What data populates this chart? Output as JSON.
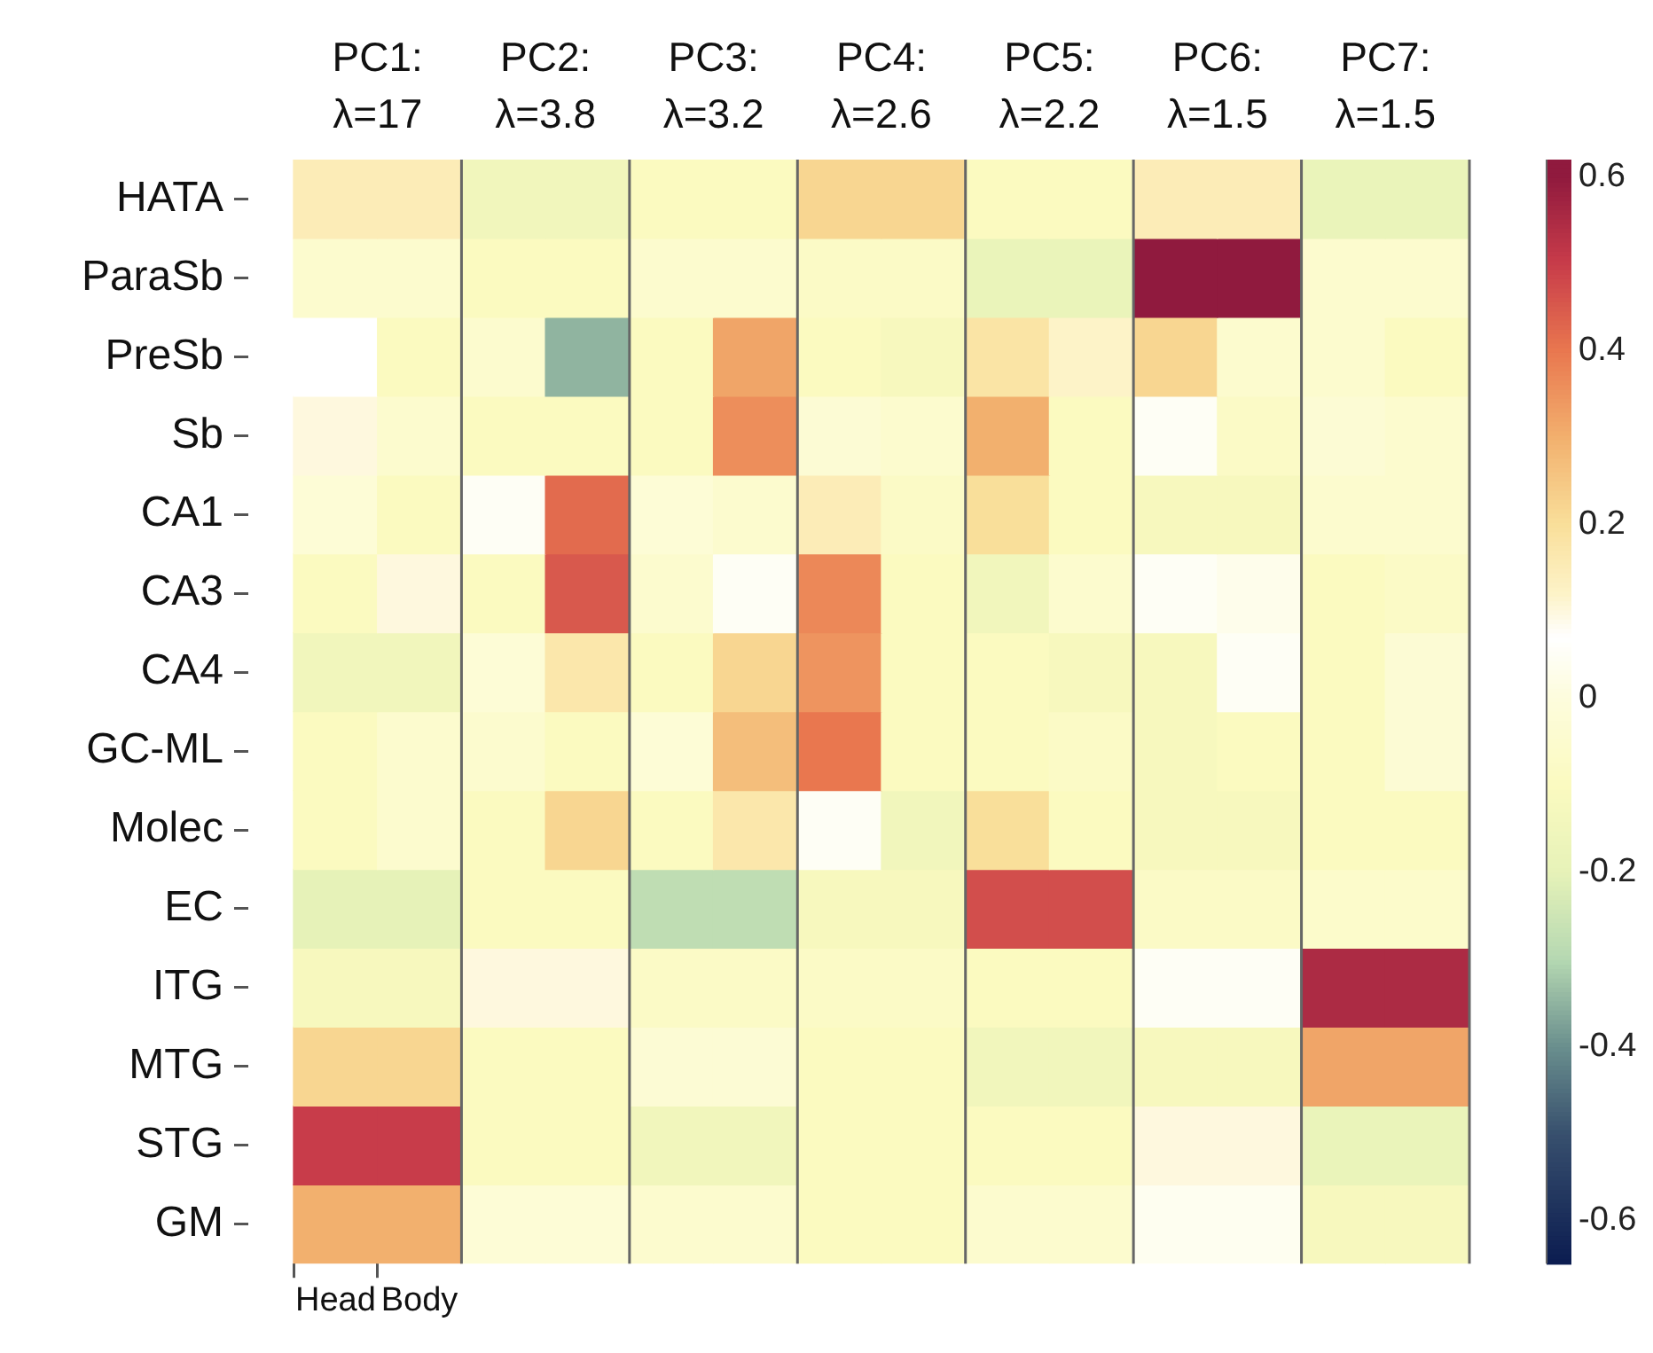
{
  "chart_data": {
    "type": "heatmap",
    "categories": [
      "Head",
      "Body",
      null,
      null,
      null,
      null,
      null,
      null,
      null,
      null,
      null,
      null,
      null,
      null
    ],
    "y_categories": [
      "HATA",
      "ParaSb",
      "PreSb",
      "Sb",
      "CA1",
      "CA3",
      "CA4",
      "GC-ML",
      "Molec",
      "EC",
      "ITG",
      "MTG",
      "STG",
      "GM"
    ],
    "annotations": [
      "PC1: λ=17",
      "PC2: λ=3.8",
      "PC3: λ=3.2",
      "PC4: λ=2.6",
      "PC5: λ=2.2",
      "PC6: λ=1.5",
      "PC7: λ=1.5"
    ],
    "clim": [
      -0.65,
      0.62
    ],
    "cticks": [
      -0.6,
      -0.4,
      -0.2,
      0,
      0.2,
      0.4,
      0.6
    ],
    "cells": [
      [
        0.15,
        0.15,
        -0.15,
        -0.15,
        -0.1,
        -0.1,
        0.22,
        0.22,
        -0.1,
        -0.1,
        0.15,
        0.15,
        -0.18,
        -0.18
      ],
      [
        -0.05,
        -0.05,
        -0.1,
        -0.1,
        -0.05,
        -0.05,
        -0.08,
        -0.08,
        -0.18,
        -0.18,
        0.6,
        0.6,
        -0.05,
        -0.05
      ],
      [
        0.07,
        -0.1,
        -0.05,
        -0.35,
        -0.1,
        0.32,
        -0.1,
        -0.12,
        0.18,
        0.12,
        0.22,
        -0.05,
        -0.05,
        -0.1
      ],
      [
        0.1,
        -0.05,
        -0.1,
        -0.1,
        -0.1,
        0.36,
        -0.03,
        -0.05,
        0.3,
        -0.1,
        0.05,
        -0.08,
        -0.03,
        -0.05
      ],
      [
        -0.02,
        -0.1,
        0.05,
        0.42,
        -0.02,
        -0.05,
        0.15,
        -0.08,
        0.2,
        -0.1,
        -0.12,
        -0.12,
        -0.05,
        -0.05
      ],
      [
        -0.1,
        0.1,
        -0.1,
        0.45,
        -0.05,
        0.05,
        0.37,
        -0.1,
        -0.15,
        -0.05,
        0.05,
        0.03,
        -0.1,
        -0.08
      ],
      [
        -0.15,
        -0.15,
        -0.02,
        0.17,
        -0.1,
        0.22,
        0.35,
        -0.1,
        -0.1,
        -0.12,
        -0.12,
        0.05,
        -0.1,
        -0.03
      ],
      [
        -0.1,
        -0.05,
        -0.05,
        -0.1,
        -0.02,
        0.27,
        0.4,
        -0.1,
        -0.1,
        -0.08,
        -0.12,
        -0.1,
        -0.1,
        -0.03
      ],
      [
        -0.1,
        -0.05,
        -0.1,
        0.22,
        -0.1,
        0.17,
        0.05,
        -0.15,
        0.2,
        -0.1,
        -0.12,
        -0.12,
        -0.1,
        -0.1
      ],
      [
        -0.2,
        -0.2,
        -0.1,
        -0.1,
        -0.28,
        -0.28,
        -0.12,
        -0.12,
        0.47,
        0.47,
        -0.08,
        -0.08,
        -0.06,
        -0.06
      ],
      [
        -0.12,
        -0.12,
        0.1,
        0.1,
        -0.08,
        -0.08,
        -0.08,
        -0.08,
        -0.1,
        -0.1,
        0.05,
        0.05,
        0.55,
        0.55
      ],
      [
        0.22,
        0.22,
        -0.1,
        -0.1,
        -0.03,
        -0.03,
        -0.1,
        -0.1,
        -0.15,
        -0.15,
        -0.12,
        -0.12,
        0.32,
        0.32
      ],
      [
        0.5,
        0.5,
        -0.1,
        -0.1,
        -0.15,
        -0.15,
        -0.1,
        -0.1,
        -0.1,
        -0.1,
        0.1,
        0.1,
        -0.18,
        -0.18
      ],
      [
        0.3,
        0.3,
        -0.02,
        -0.02,
        -0.05,
        -0.05,
        -0.1,
        -0.1,
        -0.05,
        -0.05,
        0.04,
        0.04,
        -0.12,
        -0.12
      ]
    ]
  }
}
